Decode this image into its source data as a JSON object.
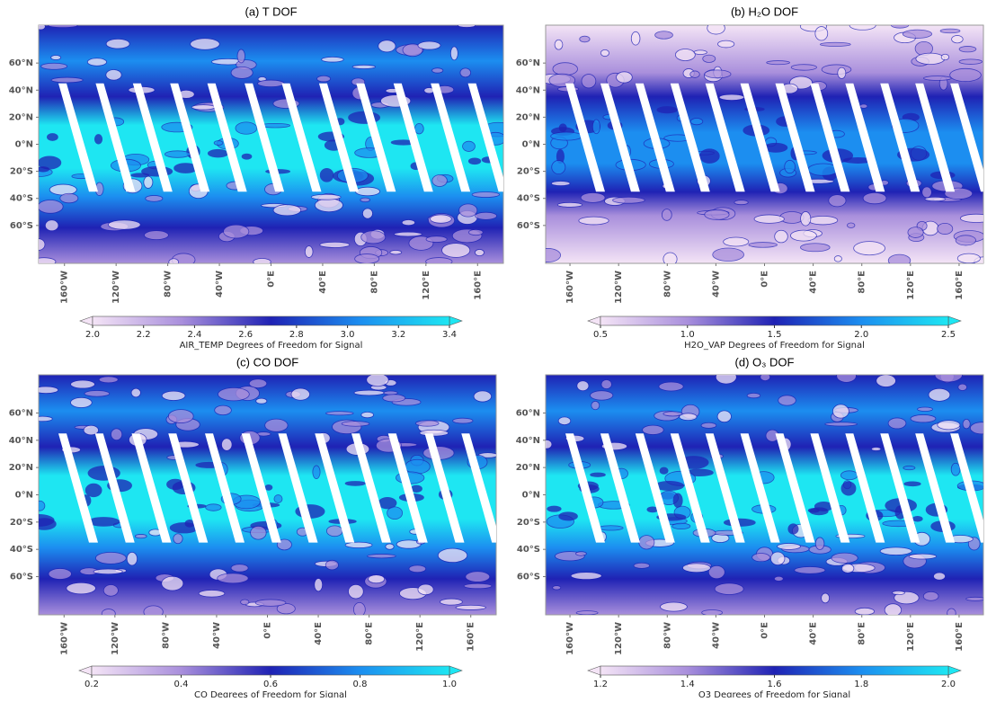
{
  "chart_data": [
    {
      "type": "map",
      "title": "(a) T DOF",
      "xlim": [
        -180,
        180
      ],
      "ylim": [
        -88,
        88
      ],
      "xticks": [
        {
          "value": -160,
          "label": "160°W"
        },
        {
          "value": -120,
          "label": "120°W"
        },
        {
          "value": -80,
          "label": "80°W"
        },
        {
          "value": -40,
          "label": "40°W"
        },
        {
          "value": 0,
          "label": "0°E"
        },
        {
          "value": 40,
          "label": "40°E"
        },
        {
          "value": 80,
          "label": "80°E"
        },
        {
          "value": 120,
          "label": "120°E"
        },
        {
          "value": 160,
          "label": "160°E"
        }
      ],
      "yticks": [
        {
          "value": 60,
          "label": "60°N"
        },
        {
          "value": 40,
          "label": "40°N"
        },
        {
          "value": 20,
          "label": "20°N"
        },
        {
          "value": 0,
          "label": "0°N"
        },
        {
          "value": -20,
          "label": "20°S"
        },
        {
          "value": -40,
          "label": "40°S"
        },
        {
          "value": -60,
          "label": "60°S"
        }
      ],
      "colorbar": {
        "label": "AIR_TEMP Degrees of Freedom for Signal",
        "clim": [
          2.0,
          3.4
        ],
        "ticks": [
          {
            "value": 2.0,
            "label": "2.0"
          },
          {
            "value": 2.2,
            "label": "2.2"
          },
          {
            "value": 2.4,
            "label": "2.4"
          },
          {
            "value": 2.6,
            "label": "2.6"
          },
          {
            "value": 2.8,
            "label": "2.8"
          },
          {
            "value": 3.0,
            "label": "3.0"
          },
          {
            "value": 3.2,
            "label": "3.2"
          },
          {
            "value": 3.4,
            "label": "3.4"
          }
        ],
        "colors": [
          "#f4e4f6",
          "#a98fdc",
          "#1f22b4",
          "#1c8ef0",
          "#1ee6f2"
        ]
      }
    },
    {
      "type": "map",
      "title": "(b) H₂O DOF",
      "xlim": [
        -180,
        180
      ],
      "ylim": [
        -88,
        88
      ],
      "xticks": [
        {
          "value": -160,
          "label": "160°W"
        },
        {
          "value": -120,
          "label": "120°W"
        },
        {
          "value": -80,
          "label": "80°W"
        },
        {
          "value": -40,
          "label": "40°W"
        },
        {
          "value": 0,
          "label": "0°E"
        },
        {
          "value": 40,
          "label": "40°E"
        },
        {
          "value": 80,
          "label": "80°E"
        },
        {
          "value": 120,
          "label": "120°E"
        },
        {
          "value": 160,
          "label": "160°E"
        }
      ],
      "yticks": [
        {
          "value": 60,
          "label": "60°N"
        },
        {
          "value": 40,
          "label": "40°N"
        },
        {
          "value": 20,
          "label": "20°N"
        },
        {
          "value": 0,
          "label": "0°N"
        },
        {
          "value": -20,
          "label": "20°S"
        },
        {
          "value": -40,
          "label": "40°S"
        },
        {
          "value": -60,
          "label": "60°S"
        }
      ],
      "colorbar": {
        "label": "H2O_VAP Degrees of Freedom for Signal",
        "clim": [
          0.5,
          2.5
        ],
        "ticks": [
          {
            "value": 0.5,
            "label": "0.5"
          },
          {
            "value": 1.0,
            "label": "1.0"
          },
          {
            "value": 1.5,
            "label": "1.5"
          },
          {
            "value": 2.0,
            "label": "2.0"
          },
          {
            "value": 2.5,
            "label": "2.5"
          }
        ],
        "colors": [
          "#f4e4f6",
          "#a98fdc",
          "#1f22b4",
          "#1c8ef0",
          "#1ee6f2"
        ]
      }
    },
    {
      "type": "map",
      "title": "(c) CO DOF",
      "xlim": [
        -180,
        180
      ],
      "ylim": [
        -88,
        88
      ],
      "xticks": [
        {
          "value": -160,
          "label": "160°W"
        },
        {
          "value": -120,
          "label": "120°W"
        },
        {
          "value": -80,
          "label": "80°W"
        },
        {
          "value": -40,
          "label": "40°W"
        },
        {
          "value": 0,
          "label": "0°E"
        },
        {
          "value": 40,
          "label": "40°E"
        },
        {
          "value": 80,
          "label": "80°E"
        },
        {
          "value": 120,
          "label": "120°E"
        },
        {
          "value": 160,
          "label": "160°E"
        }
      ],
      "yticks": [
        {
          "value": 60,
          "label": "60°N"
        },
        {
          "value": 40,
          "label": "40°N"
        },
        {
          "value": 20,
          "label": "20°N"
        },
        {
          "value": 0,
          "label": "0°N"
        },
        {
          "value": -20,
          "label": "20°S"
        },
        {
          "value": -40,
          "label": "40°S"
        },
        {
          "value": -60,
          "label": "60°S"
        }
      ],
      "colorbar": {
        "label": "CO Degrees of Freedom for Signal",
        "clim": [
          0.2,
          1.0
        ],
        "ticks": [
          {
            "value": 0.2,
            "label": "0.2"
          },
          {
            "value": 0.4,
            "label": "0.4"
          },
          {
            "value": 0.6,
            "label": "0.6"
          },
          {
            "value": 0.8,
            "label": "0.8"
          },
          {
            "value": 1.0,
            "label": "1.0"
          }
        ],
        "colors": [
          "#f4e4f6",
          "#a98fdc",
          "#1f22b4",
          "#1c8ef0",
          "#1ee6f2"
        ]
      }
    },
    {
      "type": "map",
      "title": "(d) O₃ DOF",
      "xlim": [
        -180,
        180
      ],
      "ylim": [
        -88,
        88
      ],
      "xticks": [
        {
          "value": -160,
          "label": "160°W"
        },
        {
          "value": -120,
          "label": "120°W"
        },
        {
          "value": -80,
          "label": "80°W"
        },
        {
          "value": -40,
          "label": "40°W"
        },
        {
          "value": 0,
          "label": "0°E"
        },
        {
          "value": 40,
          "label": "40°E"
        },
        {
          "value": 80,
          "label": "80°E"
        },
        {
          "value": 120,
          "label": "120°E"
        },
        {
          "value": 160,
          "label": "160°E"
        }
      ],
      "yticks": [
        {
          "value": 60,
          "label": "60°N"
        },
        {
          "value": 40,
          "label": "40°N"
        },
        {
          "value": 20,
          "label": "20°N"
        },
        {
          "value": 0,
          "label": "0°N"
        },
        {
          "value": -20,
          "label": "20°S"
        },
        {
          "value": -40,
          "label": "40°S"
        },
        {
          "value": -60,
          "label": "60°S"
        }
      ],
      "colorbar": {
        "label": "O3 Degrees of Freedom for Signal",
        "clim": [
          1.2,
          2.0
        ],
        "ticks": [
          {
            "value": 1.2,
            "label": "1.2"
          },
          {
            "value": 1.4,
            "label": "1.4"
          },
          {
            "value": 1.6,
            "label": "1.6"
          },
          {
            "value": 1.8,
            "label": "1.8"
          },
          {
            "value": 2.0,
            "label": "2.0"
          }
        ],
        "colors": [
          "#f4e4f6",
          "#a98fdc",
          "#1f22b4",
          "#1c8ef0",
          "#1ee6f2"
        ]
      }
    }
  ]
}
